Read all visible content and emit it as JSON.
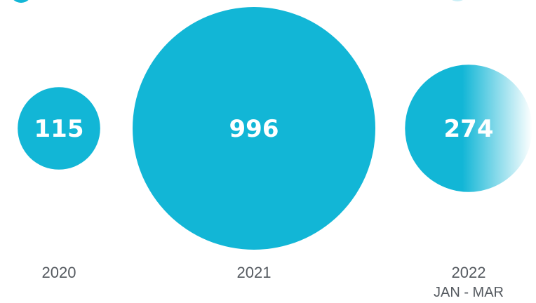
{
  "chart_data": {
    "type": "bubble",
    "title": "",
    "xlabel": "",
    "ylabel": "",
    "categories": [
      "2020",
      "2021",
      "2022"
    ],
    "category_sublabels": [
      "",
      "",
      "JAN - MAR"
    ],
    "values": [
      115,
      996,
      274
    ],
    "value_labels": [
      "115",
      "996",
      "274"
    ],
    "partial_period": [
      false,
      false,
      true
    ]
  },
  "colors": {
    "bubble": "#12b6d6",
    "bubble_fade_end": "#ffffff",
    "text_on_bubble": "#ffffff",
    "category_text": "#555a60"
  }
}
